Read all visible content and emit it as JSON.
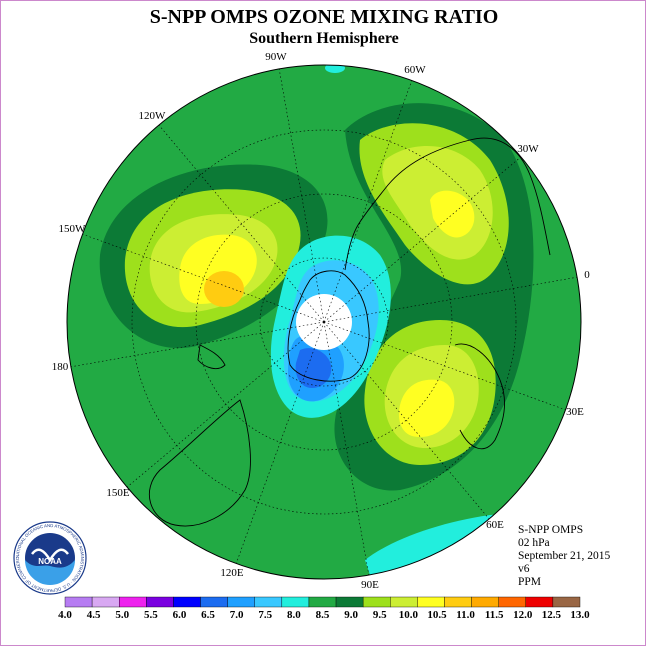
{
  "header": {
    "title": "S-NPP OMPS OZONE MIXING RATIO",
    "subtitle": "Southern Hemisphere"
  },
  "map": {
    "longitude_labels": [
      "90W",
      "60W",
      "30W",
      "0",
      "30E",
      "60E",
      "90E",
      "120E",
      "150E",
      "180",
      "150W",
      "120W"
    ]
  },
  "info": {
    "product": "S-NPP OMPS",
    "level": "02 hPa",
    "date": "September 21, 2015",
    "version": "v6",
    "units": "PPM"
  },
  "colorbar": {
    "labels": [
      "4.0",
      "4.5",
      "5.0",
      "5.5",
      "6.0",
      "6.5",
      "7.0",
      "7.5",
      "8.0",
      "8.5",
      "9.0",
      "9.5",
      "10.0",
      "10.5",
      "11.0",
      "11.5",
      "12.0",
      "12.5",
      "13.0"
    ],
    "colors": [
      "#b67cf2",
      "#d8a8f2",
      "#ee22ee",
      "#7a00e0",
      "#0000ff",
      "#1c6cf0",
      "#1fa0ff",
      "#39c8ff",
      "#22eedd",
      "#22aa44",
      "#0c7a36",
      "#9ee01c",
      "#ccee33",
      "#ffff22",
      "#ffcc11",
      "#ffaa00",
      "#ff6600",
      "#ee0000",
      "#996644"
    ]
  },
  "logo": {
    "text": "NOAA",
    "ring_text": "NATIONAL OCEANIC AND ATMOSPHERIC ADMINISTRATION · U.S. DEPARTMENT OF COMMERCE"
  }
}
